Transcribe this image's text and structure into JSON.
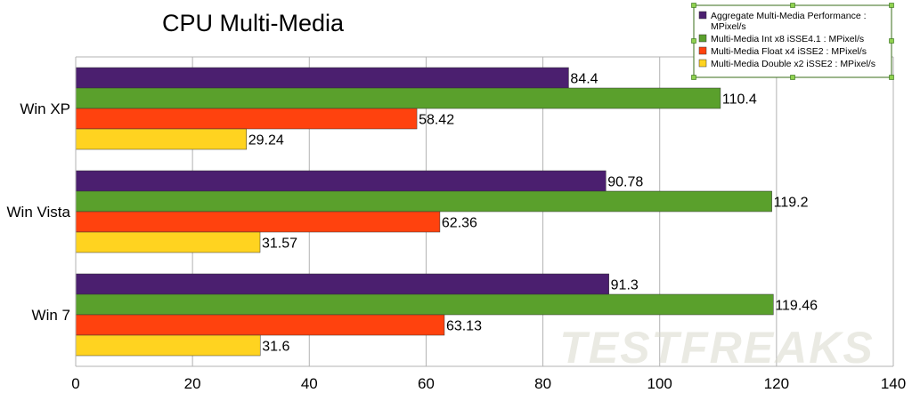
{
  "chart_data": {
    "type": "bar",
    "orientation": "horizontal",
    "title": "CPU Multi-Media",
    "categories": [
      "Win XP",
      "Win Vista",
      "Win 7"
    ],
    "series": [
      {
        "name": "Aggregate Multi-Media Performance : MPixel/s",
        "color": "#4b1f6f",
        "values": [
          84.4,
          90.78,
          91.3
        ]
      },
      {
        "name": "Multi-Media Int x8 iSSE4.1 : MPixel/s",
        "color": "#5aa02c",
        "values": [
          110.4,
          119.2,
          119.46
        ]
      },
      {
        "name": "Multi-Media Float x4 iSSE2 : MPixel/s",
        "color": "#ff420e",
        "values": [
          58.42,
          62.36,
          63.13
        ]
      },
      {
        "name": "Multi-Media Double x2 iSSE2 : MPixel/s",
        "color": "#ffd320",
        "values": [
          29.24,
          31.57,
          31.6
        ]
      }
    ],
    "xlim": [
      0,
      140
    ],
    "xticks": [
      0,
      20,
      40,
      60,
      80,
      100,
      120,
      140
    ],
    "grid": "vertical",
    "legend_position": "top-right",
    "watermark": "TESTFREAKS"
  }
}
